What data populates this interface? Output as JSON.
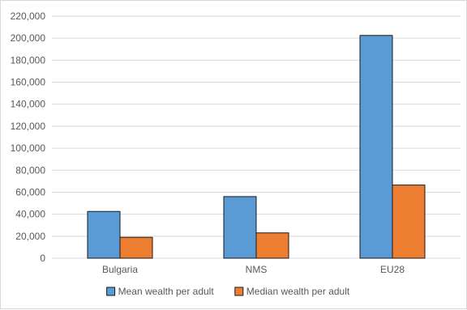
{
  "chart_data": {
    "type": "bar",
    "title": "",
    "xlabel": "",
    "ylabel": "",
    "categories": [
      "Bulgaria",
      "NMS",
      "EU28"
    ],
    "series": [
      {
        "name": "Mean wealth per adult",
        "color": "#5b9bd5",
        "values": [
          42500,
          56000,
          202500
        ]
      },
      {
        "name": "Median wealth per adult",
        "color": "#ed7d31",
        "values": [
          19000,
          23000,
          66500
        ]
      }
    ],
    "ylim": [
      0,
      220000
    ],
    "yticks": [
      0,
      20000,
      40000,
      60000,
      80000,
      100000,
      120000,
      140000,
      160000,
      180000,
      200000,
      220000
    ],
    "ytick_labels": [
      "0",
      "20,000",
      "40,000",
      "60,000",
      "80,000",
      "100,000",
      "120,000",
      "140,000",
      "160,000",
      "180,000",
      "200,000",
      "220,000"
    ],
    "grid": true,
    "legend_position": "bottom"
  }
}
